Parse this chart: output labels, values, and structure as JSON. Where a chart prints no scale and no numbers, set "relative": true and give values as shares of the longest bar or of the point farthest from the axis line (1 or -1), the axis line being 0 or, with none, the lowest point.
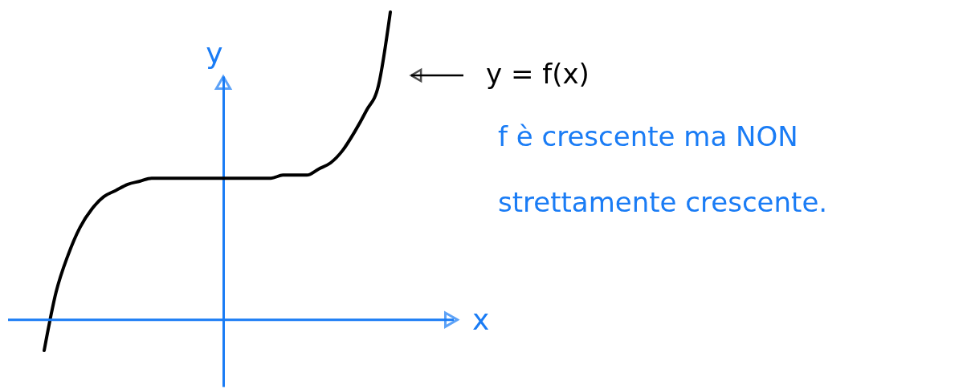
{
  "chart_data": {
    "type": "line",
    "relative": true,
    "xlabel": "x",
    "ylabel": "y",
    "categories": [
      null,
      null,
      null,
      null,
      null,
      null,
      null,
      null,
      null,
      null,
      null,
      null,
      null,
      null,
      null,
      null,
      null,
      null,
      null,
      null,
      null,
      null,
      null,
      null,
      null,
      null,
      null,
      null,
      null,
      null
    ],
    "series": [
      {
        "color": "#000000",
        "values": [
          -0.1,
          0.09,
          0.21,
          0.3,
          0.36,
          0.4,
          0.42,
          0.44,
          0.45,
          0.46,
          0.46,
          0.46,
          0.46,
          0.46,
          0.46,
          0.46,
          0.46,
          0.46,
          0.46,
          0.46,
          0.47,
          0.47,
          0.47,
          0.49,
          0.51,
          0.55,
          0.61,
          0.68,
          0.76,
          1.0
        ]
      }
    ],
    "annotations": [
      "y = f(x)",
      "f è crescente ma NON strettamente crescente."
    ],
    "ref_lines": [
      {
        "axis": "y",
        "value": 0,
        "color": "#1a7cf5"
      }
    ],
    "grid": false,
    "marker": "none",
    "line_style": "solid"
  }
}
